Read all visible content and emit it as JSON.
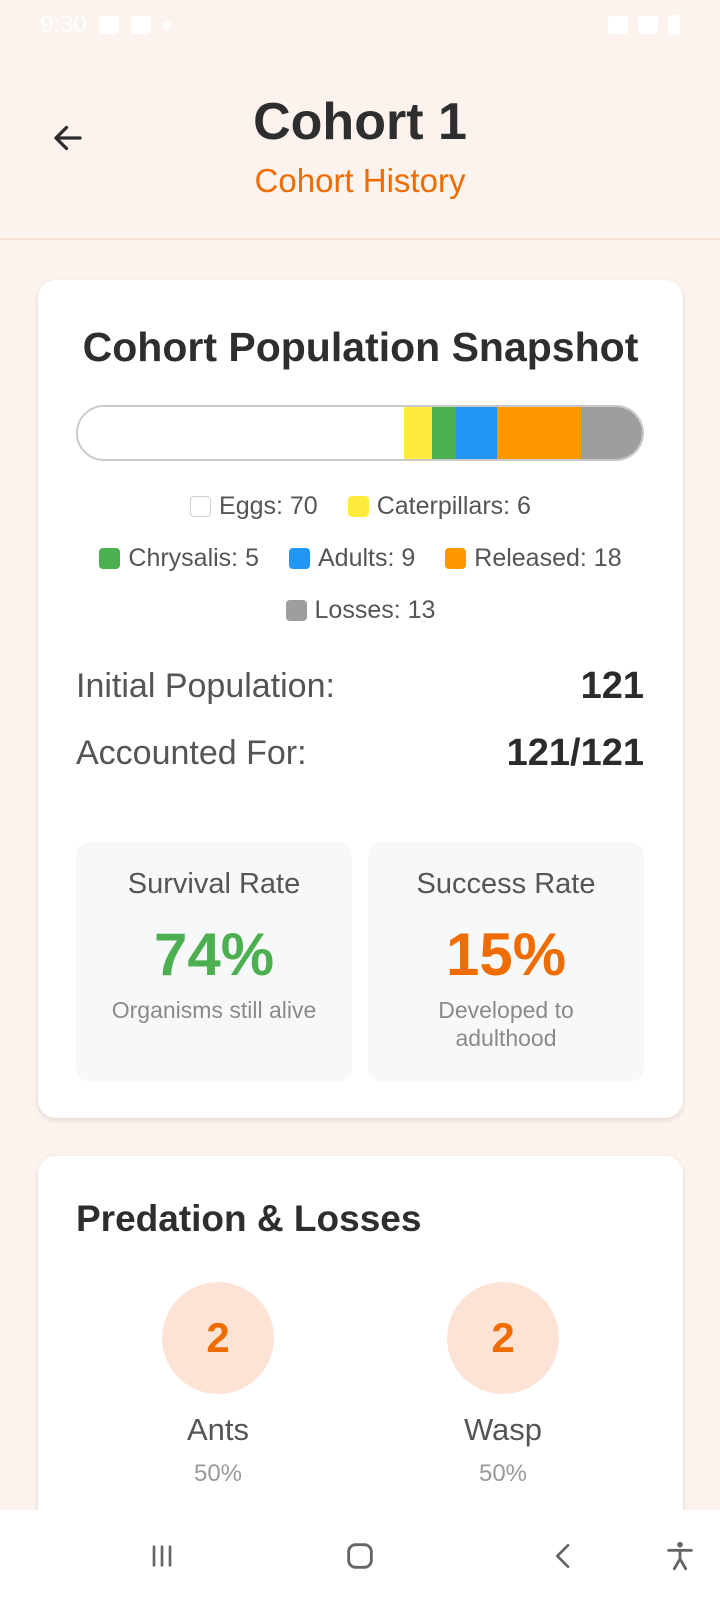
{
  "status": {
    "time": "9:30"
  },
  "header": {
    "title": "Cohort 1",
    "subtitle": "Cohort History"
  },
  "snapshot": {
    "title": "Cohort Population Snapshot",
    "segments": [
      {
        "name": "Eggs",
        "count": 70,
        "color": "#ffffff",
        "label": "Eggs: 70"
      },
      {
        "name": "Caterpillars",
        "count": 6,
        "color": "#ffeb3b",
        "label": "Caterpillars: 6"
      },
      {
        "name": "Chrysalis",
        "count": 5,
        "color": "#4caf50",
        "label": "Chrysalis: 5"
      },
      {
        "name": "Adults",
        "count": 9,
        "color": "#2196f3",
        "label": "Adults: 9"
      },
      {
        "name": "Released",
        "count": 18,
        "color": "#ff9800",
        "label": "Released: 18"
      },
      {
        "name": "Losses",
        "count": 13,
        "color": "#9e9e9e",
        "label": "Losses: 13"
      }
    ],
    "initial_population_label": "Initial Population:",
    "initial_population_value": "121",
    "accounted_for_label": "Accounted For:",
    "accounted_for_value": "121/121",
    "survival": {
      "title": "Survival Rate",
      "value": "74%",
      "desc": "Organisms still alive",
      "color": "#4caf50"
    },
    "success": {
      "title": "Success Rate",
      "value": "15%",
      "desc": "Developed to adulthood",
      "color": "#ef6c00"
    }
  },
  "predation": {
    "title": "Predation & Losses",
    "items": [
      {
        "count": "2",
        "name": "Ants",
        "percent": "50%"
      },
      {
        "count": "2",
        "name": "Wasp",
        "percent": "50%"
      }
    ]
  },
  "icons": {
    "back": "arrow-left-icon",
    "nav_recents": "recents-icon",
    "nav_home": "home-icon",
    "nav_back": "chevron-left-icon",
    "nav_accessibility": "accessibility-icon"
  }
}
